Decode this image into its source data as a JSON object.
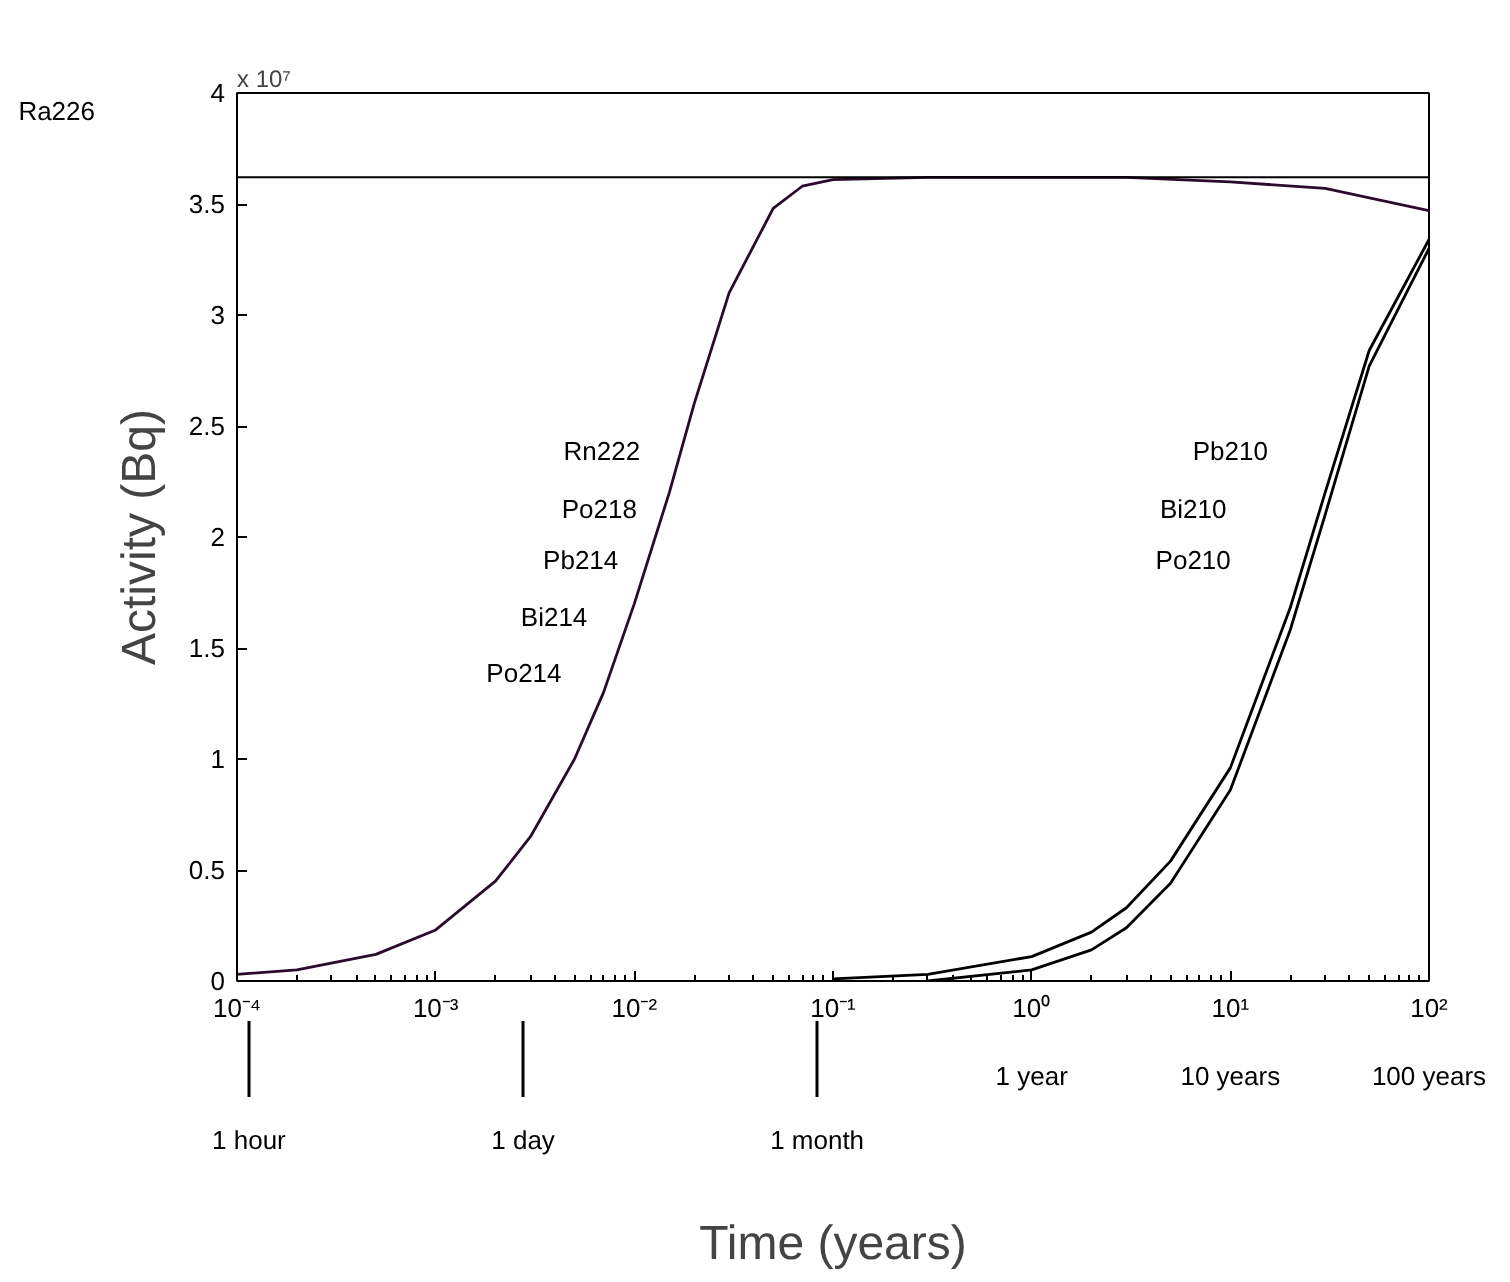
{
  "chart_data": {
    "type": "line",
    "xlabel": "Time (years)",
    "ylabel": "Activity (Bq)",
    "log": "x",
    "grid": false,
    "marker": "none",
    "line_style": "solid",
    "xlim": [
      0.0001,
      100
    ],
    "ylim": [
      0,
      4
    ],
    "xticks": [
      {
        "value": 0.0001,
        "label": "10⁻⁴"
      },
      {
        "value": 0.001,
        "label": "10⁻³"
      },
      {
        "value": 0.01,
        "label": "10⁻²"
      },
      {
        "value": 0.1,
        "label": "10⁻¹"
      },
      {
        "value": 1,
        "label": "10⁰"
      },
      {
        "value": 10,
        "label": "10¹"
      },
      {
        "value": 100,
        "label": "10²"
      }
    ],
    "yticks": [
      0,
      0.5,
      1,
      1.5,
      2,
      2.5,
      3,
      3.5,
      4
    ],
    "series": [
      {
        "color": "#2b0a2b",
        "x": [
          0.0001,
          0.0002,
          0.0005,
          0.001,
          0.002,
          0.003,
          0.005,
          0.007,
          0.01,
          0.015,
          0.02,
          0.03,
          0.05,
          0.07,
          0.1,
          0.3,
          1,
          3,
          10,
          30,
          100
        ],
        "values": [
          0.03,
          0.05,
          0.12,
          0.23,
          0.45,
          0.65,
          1.0,
          1.3,
          1.7,
          2.2,
          2.6,
          3.1,
          3.48,
          3.58,
          3.61,
          3.62,
          3.62,
          3.62,
          3.6,
          3.57,
          3.47
        ]
      },
      {
        "color": "#000000",
        "x": [
          0.1,
          0.3,
          1,
          2,
          3,
          5,
          10,
          20,
          30,
          50,
          100
        ],
        "values": [
          0.01,
          0.03,
          0.11,
          0.22,
          0.33,
          0.54,
          0.96,
          1.68,
          2.2,
          2.84,
          3.34
        ]
      },
      {
        "color": "#000000",
        "x": [
          0.3,
          1,
          2,
          3,
          5,
          10,
          20,
          30,
          50,
          100
        ],
        "values": [
          0.0,
          0.05,
          0.14,
          0.24,
          0.44,
          0.86,
          1.58,
          2.1,
          2.77,
          3.3
        ]
      }
    ],
    "ref_lines": [
      {
        "axis": "y",
        "value": 3.62,
        "color": "#000000"
      }
    ],
    "annotations": [
      "x 10⁷",
      "Ra226",
      "Rn222",
      "Po218",
      "Pb214",
      "Bi214",
      "Po214",
      "Pb210",
      "Bi210",
      "Po210",
      "1 hour",
      "1 day",
      "1 month",
      "1 year",
      "10 years",
      "100 years"
    ]
  }
}
